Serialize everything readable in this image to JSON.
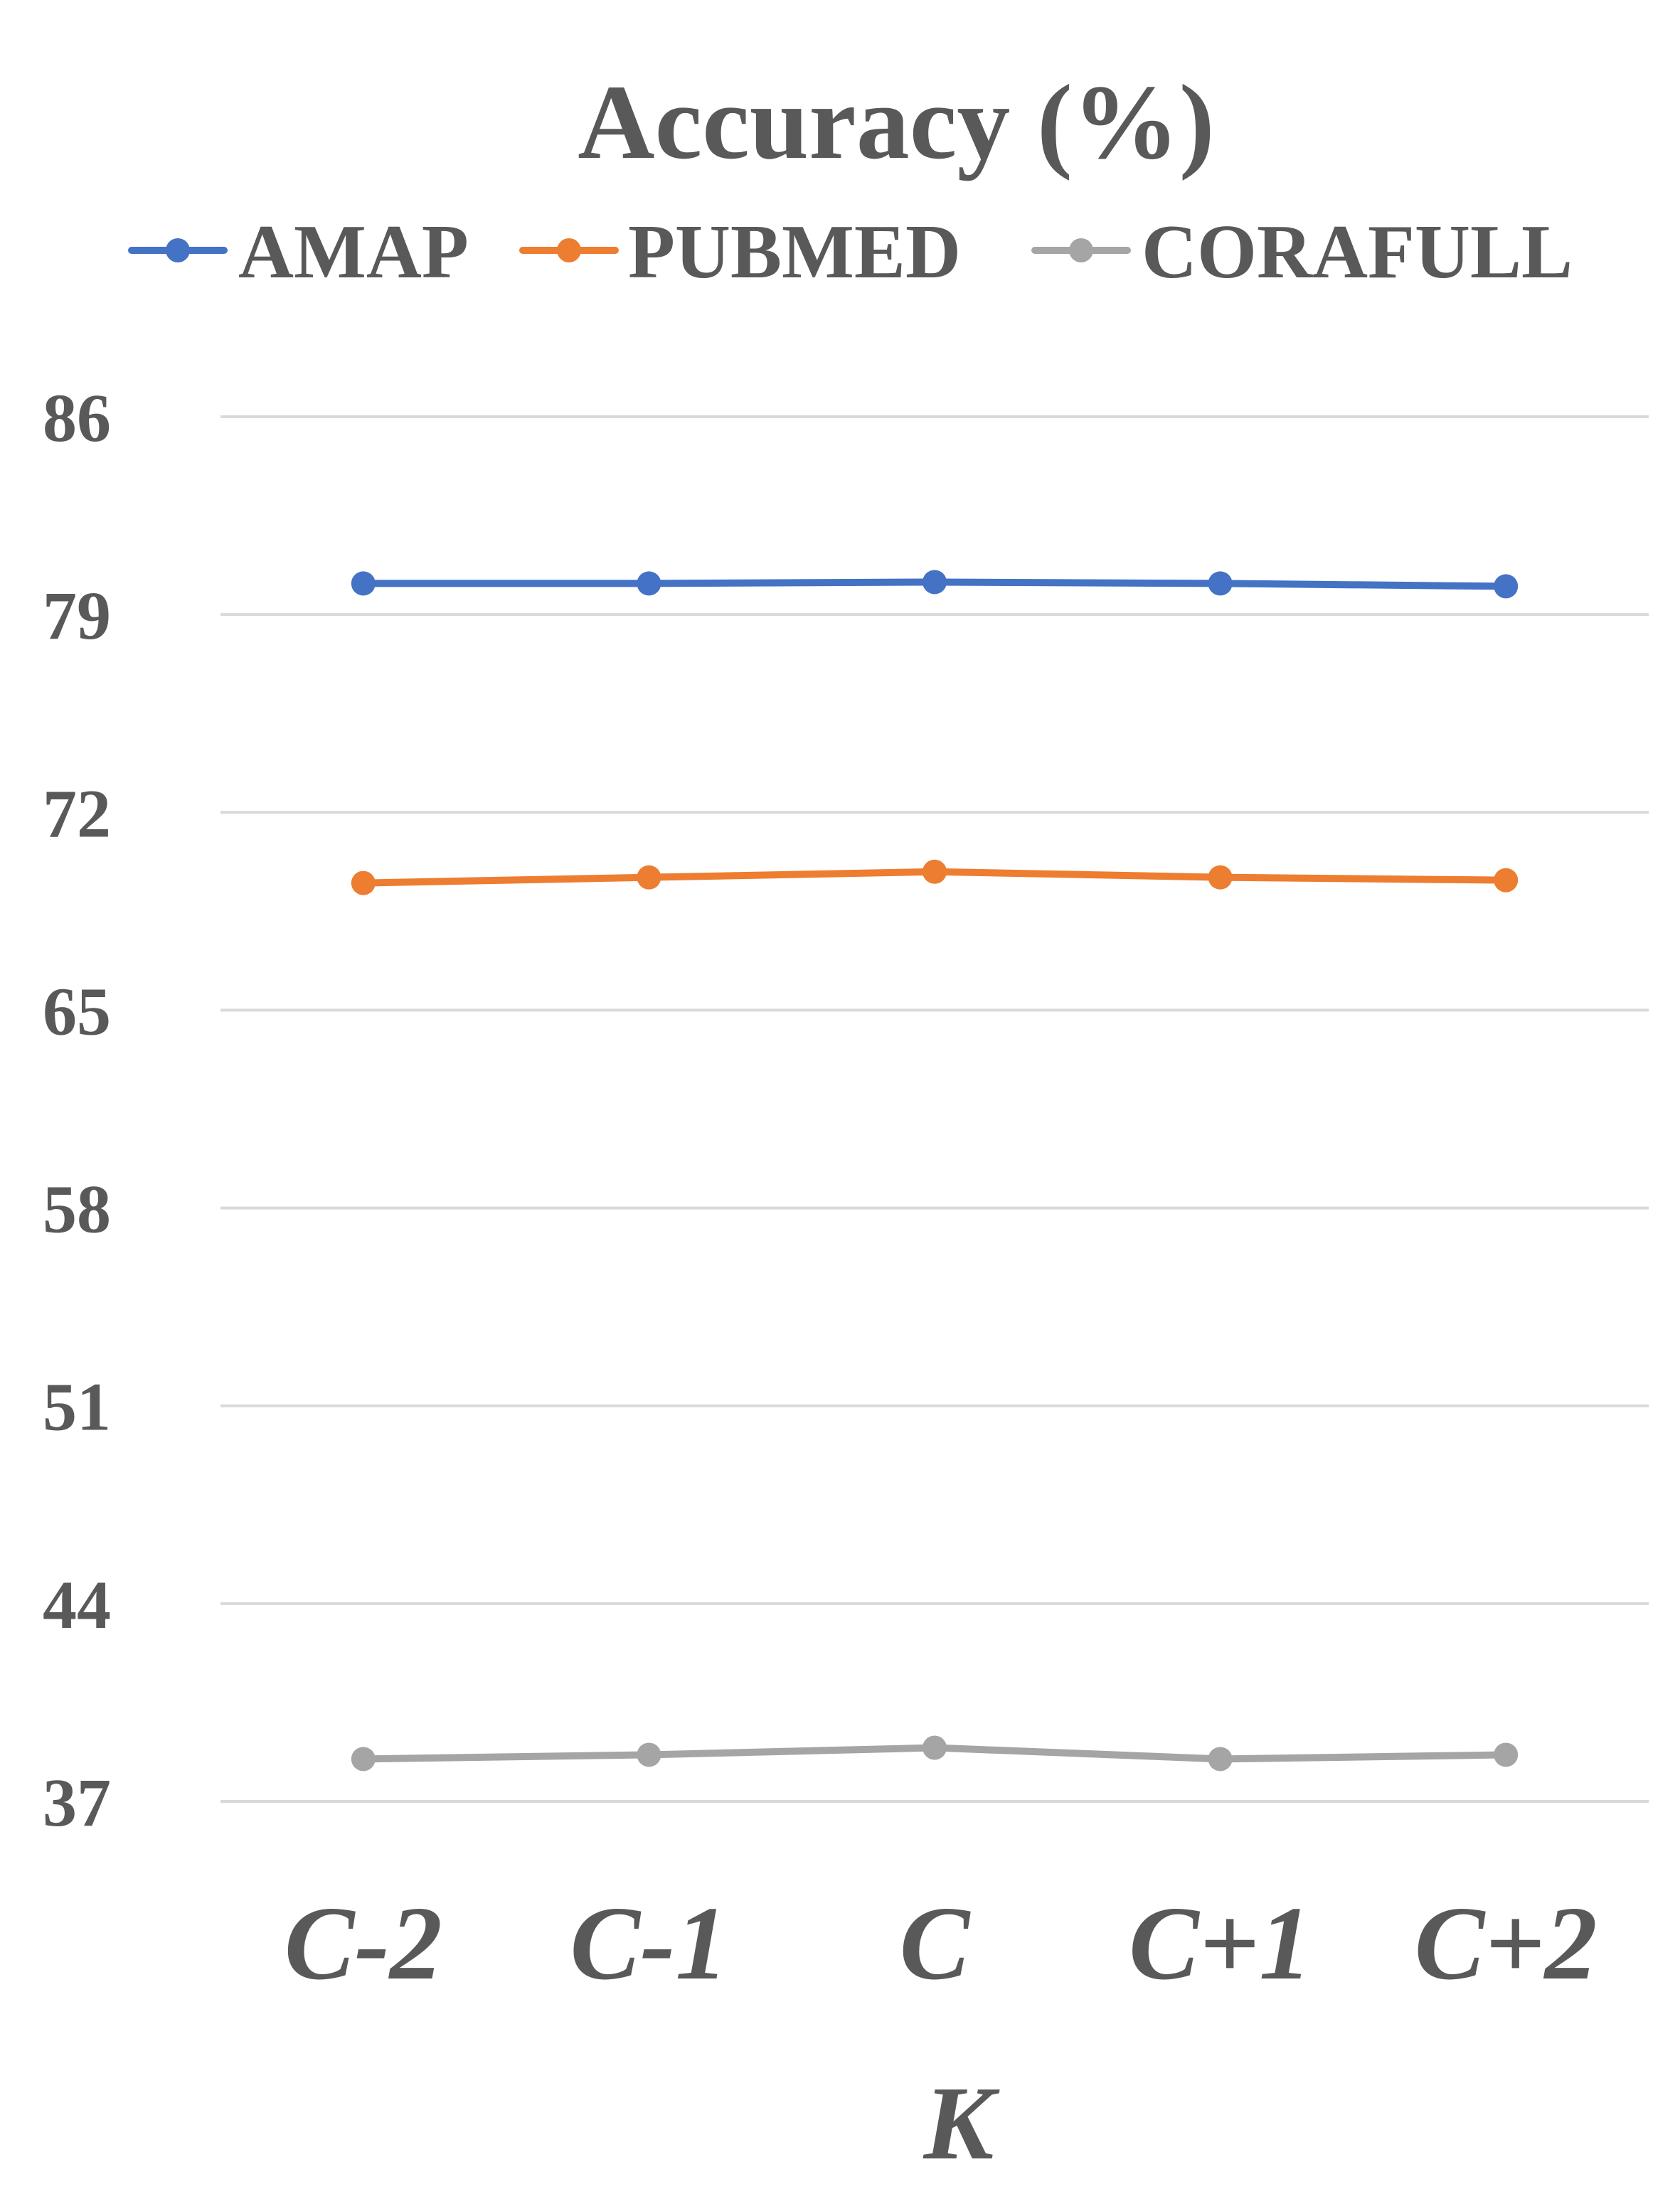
{
  "chart_data": {
    "type": "line",
    "title": "Accuracy (%)",
    "xlabel": "K",
    "ylabel": "",
    "categories": [
      "C-2",
      "C-1",
      "C",
      "C+1",
      "C+2"
    ],
    "ylim": [
      37,
      86
    ],
    "yticks": [
      86,
      79,
      72,
      65,
      58,
      51,
      44,
      37
    ],
    "grid": true,
    "legend_position": "top",
    "series": [
      {
        "name": "AMAP",
        "color": "#4472C4",
        "values": [
          80.1,
          80.1,
          80.15,
          80.1,
          80.0
        ]
      },
      {
        "name": "PUBMED",
        "color": "#ED7D31",
        "values": [
          69.5,
          69.7,
          69.9,
          69.7,
          69.6
        ]
      },
      {
        "name": "CORAFULL",
        "color": "#A5A5A5",
        "values": [
          38.5,
          38.65,
          38.9,
          38.5,
          38.65
        ]
      }
    ]
  }
}
